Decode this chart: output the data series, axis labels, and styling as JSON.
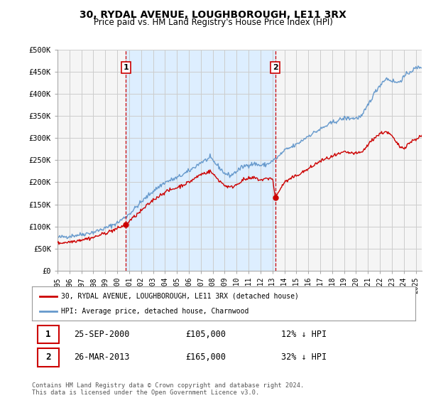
{
  "title": "30, RYDAL AVENUE, LOUGHBOROUGH, LE11 3RX",
  "subtitle": "Price paid vs. HM Land Registry's House Price Index (HPI)",
  "ylim": [
    0,
    500000
  ],
  "yticks": [
    0,
    50000,
    100000,
    150000,
    200000,
    250000,
    300000,
    350000,
    400000,
    450000,
    500000
  ],
  "ytick_labels": [
    "£0",
    "£50K",
    "£100K",
    "£150K",
    "£200K",
    "£250K",
    "£300K",
    "£350K",
    "£400K",
    "£450K",
    "£500K"
  ],
  "background_color": "#ffffff",
  "plot_bg_color": "#f5f5f5",
  "grid_color": "#cccccc",
  "shade_color": "#ddeeff",
  "house_color": "#cc0000",
  "hpi_color": "#6699cc",
  "marker1_x": 2000.73,
  "marker1_y": 105000,
  "marker1_label": "1",
  "marker2_x": 2013.23,
  "marker2_y": 165000,
  "marker2_label": "2",
  "legend_house": "30, RYDAL AVENUE, LOUGHBOROUGH, LE11 3RX (detached house)",
  "legend_hpi": "HPI: Average price, detached house, Charnwood",
  "annotation1_date": "25-SEP-2000",
  "annotation1_price": "£105,000",
  "annotation1_hpi": "12% ↓ HPI",
  "annotation2_date": "26-MAR-2013",
  "annotation2_price": "£165,000",
  "annotation2_hpi": "32% ↓ HPI",
  "footer": "Contains HM Land Registry data © Crown copyright and database right 2024.\nThis data is licensed under the Open Government Licence v3.0.",
  "xmin": 1995,
  "xmax": 2025.5,
  "xticks": [
    1995,
    1996,
    1997,
    1998,
    1999,
    2000,
    2001,
    2002,
    2003,
    2004,
    2005,
    2006,
    2007,
    2008,
    2009,
    2010,
    2011,
    2012,
    2013,
    2014,
    2015,
    2016,
    2017,
    2018,
    2019,
    2020,
    2021,
    2022,
    2023,
    2024,
    2025
  ]
}
